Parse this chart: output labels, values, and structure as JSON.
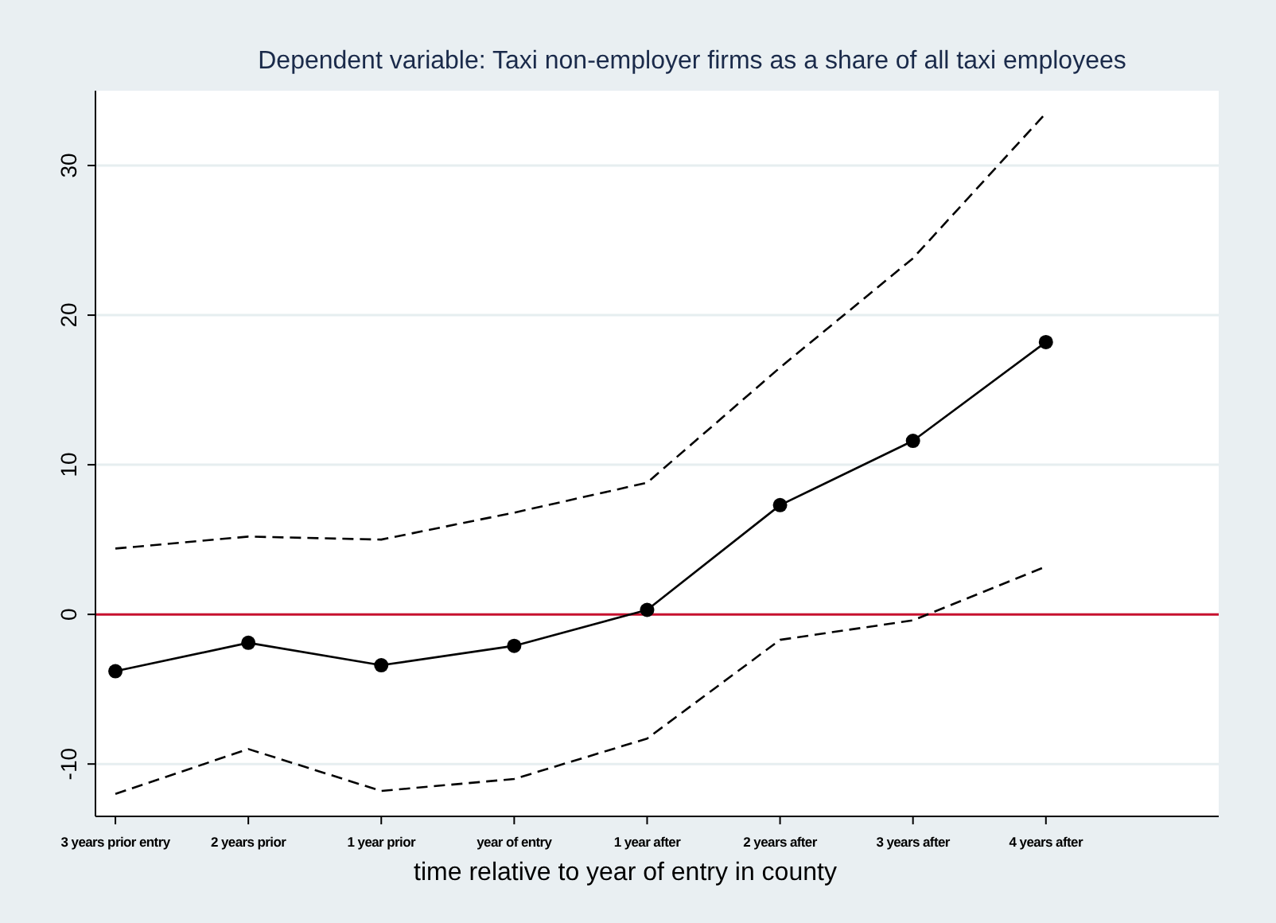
{
  "chart_data": {
    "type": "line",
    "title": "Dependent variable: Taxi non-employer firms as a share of all taxi employees",
    "xlabel": "time relative to year of entry in county",
    "categories": [
      "3 years prior entry",
      "2 years prior",
      "1 year prior",
      "year of entry",
      "1 year after",
      "2 years after",
      "3 years after",
      "4 years after"
    ],
    "series": [
      {
        "color": "#000000",
        "marker": "circle",
        "line_style": "solid",
        "values": [
          -3.8,
          -1.9,
          -3.4,
          -2.1,
          0.3,
          7.3,
          11.6,
          18.2
        ]
      },
      {
        "color": "#000000",
        "marker": "none",
        "line_style": "dashed",
        "values": [
          4.4,
          5.2,
          5.0,
          6.8,
          8.8,
          16.5,
          23.8,
          33.5
        ]
      },
      {
        "color": "#000000",
        "marker": "none",
        "line_style": "dashed",
        "values": [
          -12,
          -9,
          -11.8,
          -11,
          -8.3,
          -1.7,
          -0.4,
          3.2
        ]
      }
    ],
    "ylim": [
      -13.5,
      35
    ],
    "yticks": [
      -10,
      0,
      10,
      20,
      30
    ],
    "grid": "y",
    "ref_lines": [
      {
        "axis": "y",
        "value": 0,
        "color": "#c8102e"
      }
    ]
  }
}
